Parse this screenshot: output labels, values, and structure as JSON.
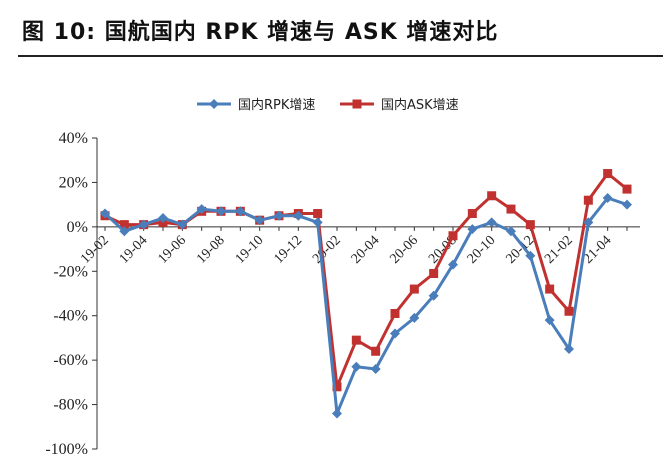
{
  "figure": {
    "title": "图 10: 国航国内 RPK 增速与 ASK 增速对比"
  },
  "chart_data": {
    "type": "line",
    "title": "",
    "xlabel": "",
    "ylabel": "",
    "x": [
      "19-02",
      "19-03",
      "19-04",
      "19-05",
      "19-06",
      "19-07",
      "19-08",
      "19-09",
      "19-10",
      "19-11",
      "19-12",
      "20-01",
      "20-02",
      "20-03",
      "20-04",
      "20-05",
      "20-06",
      "20-07",
      "20-08",
      "20-09",
      "20-10",
      "20-11",
      "20-12",
      "21-01",
      "21-02",
      "21-03",
      "21-04",
      "21-05"
    ],
    "x_tick_labels": [
      "19-02",
      "19-04",
      "19-06",
      "19-08",
      "19-10",
      "19-12",
      "20-02",
      "20-04",
      "20-06",
      "20-08",
      "20-10",
      "20-12",
      "21-02",
      "21-04"
    ],
    "ylim": [
      -100,
      40
    ],
    "y_ticks": [
      40,
      20,
      0,
      -20,
      -40,
      -60,
      -80,
      -100
    ],
    "y_tick_labels": [
      "40%",
      "20%",
      "0%",
      "-20%",
      "-40%",
      "-60%",
      "-80%",
      "-100%"
    ],
    "legend_position": "top-center",
    "grid": false,
    "series": [
      {
        "name": "国内RPK增速",
        "color": "#4a7ebb",
        "marker": "diamond",
        "values": [
          6,
          -2,
          1,
          4,
          1,
          8,
          7,
          7,
          3,
          5,
          5,
          2,
          -84,
          -63,
          -64,
          -48,
          -41,
          -31,
          -17,
          -1,
          2,
          -2,
          -13,
          -42,
          -55,
          2,
          13,
          10
        ]
      },
      {
        "name": "国内ASK增速",
        "color": "#c0312f",
        "marker": "square",
        "values": [
          5,
          1,
          1,
          2,
          1,
          7,
          7,
          7,
          3,
          5,
          6,
          6,
          -72,
          -51,
          -56,
          -39,
          -28,
          -21,
          -4,
          6,
          14,
          8,
          1,
          -28,
          -38,
          12,
          24,
          17
        ]
      }
    ]
  }
}
